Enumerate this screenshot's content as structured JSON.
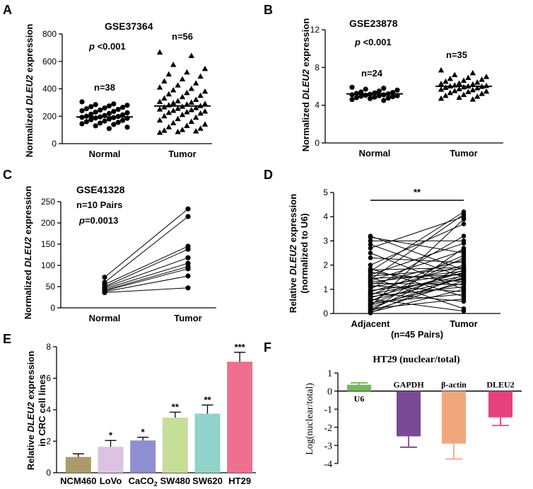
{
  "panels": {
    "A": {
      "label": "A",
      "chart_data": {
        "type": "scatter",
        "title": "GSE37364",
        "pvalue": "p <0.001",
        "ylabel_pre": "Normalized ",
        "ylabel_gene": "DLEU2",
        "ylabel_post": " expression",
        "ylim": [
          0,
          800
        ],
        "yticks": [
          "0",
          "200",
          "400",
          "600",
          "800"
        ],
        "categories": [
          "Normal",
          "Tumor"
        ],
        "groups": [
          {
            "name": "Normal",
            "n_label": "n=38",
            "marker": "circle",
            "mean": 195,
            "values": [
              305,
              290,
              285,
              280,
              275,
              270,
              265,
              260,
              255,
              250,
              245,
              240,
              235,
              230,
              225,
              220,
              215,
              210,
              205,
              200,
              198,
              195,
              192,
              190,
              187,
              185,
              180,
              175,
              170,
              165,
              160,
              155,
              150,
              145,
              140,
              130,
              120,
              110
            ]
          },
          {
            "name": "Tumor",
            "n_label": "n=56",
            "marker": "triangle",
            "mean": 275,
            "values": [
              665,
              640,
              575,
              545,
              520,
              505,
              490,
              470,
              455,
              440,
              425,
              410,
              400,
              390,
              380,
              370,
              360,
              350,
              340,
              330,
              320,
              310,
              305,
              300,
              295,
              290,
              285,
              280,
              275,
              270,
              265,
              260,
              255,
              250,
              245,
              240,
              235,
              230,
              225,
              220,
              210,
              200,
              190,
              180,
              170,
              160,
              150,
              140,
              130,
              120,
              110,
              100,
              95,
              90,
              85,
              80
            ]
          }
        ]
      }
    },
    "B": {
      "label": "B",
      "chart_data": {
        "type": "scatter",
        "title": "GSE23878",
        "pvalue": "p <0.001",
        "ylabel_pre": "Normalized ",
        "ylabel_gene": "DLEU2",
        "ylabel_post": " expression",
        "ylim": [
          0,
          12
        ],
        "yticks": [
          "0",
          "4",
          "8",
          "12"
        ],
        "categories": [
          "Normal",
          "Tumor"
        ],
        "groups": [
          {
            "name": "Normal",
            "n_label": "n=24",
            "marker": "circle",
            "mean": 5.2,
            "values": [
              5.9,
              5.8,
              5.7,
              5.6,
              5.5,
              5.4,
              5.35,
              5.3,
              5.25,
              5.2,
              5.15,
              5.1,
              5.1,
              5.05,
              5.0,
              5.0,
              4.95,
              4.9,
              4.85,
              4.8,
              4.75,
              4.7,
              4.6,
              4.5
            ]
          },
          {
            "name": "Tumor",
            "n_label": "n=35",
            "marker": "triangle",
            "mean": 6.0,
            "values": [
              7.7,
              7.4,
              7.2,
              7.0,
              6.9,
              6.8,
              6.7,
              6.6,
              6.5,
              6.4,
              6.3,
              6.25,
              6.2,
              6.1,
              6.05,
              6.0,
              6.0,
              5.95,
              5.9,
              5.85,
              5.8,
              5.7,
              5.65,
              5.6,
              5.5,
              5.45,
              5.4,
              5.3,
              5.2,
              5.1,
              5.0,
              4.9,
              4.8,
              4.7,
              4.6
            ]
          }
        ]
      }
    },
    "C": {
      "label": "C",
      "chart_data": {
        "type": "line",
        "title": "GSE41328",
        "subtitle": "n=10 Pairs",
        "pvalue": "p=0.0013",
        "ylabel_pre": "Normalized ",
        "ylabel_gene": "DLEU2",
        "ylabel_post": " expression",
        "ylim": [
          0,
          250
        ],
        "yticks": [
          "0",
          "50",
          "100",
          "150",
          "200",
          "250"
        ],
        "categories": [
          "Normal",
          "Tumor"
        ],
        "pairs": [
          [
            72,
            233
          ],
          [
            60,
            215
          ],
          [
            55,
            145
          ],
          [
            50,
            138
          ],
          [
            48,
            118
          ],
          [
            45,
            105
          ],
          [
            42,
            97
          ],
          [
            40,
            92
          ],
          [
            38,
            75
          ],
          [
            36,
            47
          ]
        ]
      }
    },
    "D": {
      "label": "D",
      "chart_data": {
        "type": "line",
        "ylabel_pre": "Relative ",
        "ylabel_gene": "DLEU2",
        "ylabel_post": " expression",
        "ylabel2": "(normalized to U6)",
        "ylim": [
          0,
          5
        ],
        "yticks": [
          "0",
          "1",
          "2",
          "3",
          "4",
          "5"
        ],
        "categories": [
          "Adjacent",
          "Tumor"
        ],
        "xlabel": "(n=45 Pairs)",
        "significance": "**",
        "pairs": [
          [
            3.2,
            1.8
          ],
          [
            3.15,
            2.5
          ],
          [
            3.0,
            3.0
          ],
          [
            2.85,
            1.5
          ],
          [
            2.7,
            4.0
          ],
          [
            2.5,
            1.0
          ],
          [
            2.3,
            2.1
          ],
          [
            2.0,
            3.7
          ],
          [
            1.85,
            0.7
          ],
          [
            1.8,
            1.9
          ],
          [
            1.75,
            4.2
          ],
          [
            1.7,
            1.3
          ],
          [
            1.6,
            2.9
          ],
          [
            1.55,
            1.85
          ],
          [
            1.5,
            0.2
          ],
          [
            1.45,
            1.6
          ],
          [
            1.4,
            4.1
          ],
          [
            1.35,
            2.6
          ],
          [
            1.3,
            1.75
          ],
          [
            1.25,
            1.2
          ],
          [
            1.2,
            2.2
          ],
          [
            1.15,
            0.9
          ],
          [
            1.1,
            1.65
          ],
          [
            1.0,
            3.2
          ],
          [
            0.95,
            1.4
          ],
          [
            0.9,
            2.0
          ],
          [
            0.85,
            0.5
          ],
          [
            0.8,
            1.55
          ],
          [
            0.75,
            2.4
          ],
          [
            0.7,
            1.1
          ],
          [
            0.65,
            1.7
          ],
          [
            0.6,
            0.1
          ],
          [
            0.55,
            1.45
          ],
          [
            0.5,
            2.3
          ],
          [
            0.45,
            0.8
          ],
          [
            0.4,
            1.8
          ],
          [
            0.35,
            1.25
          ],
          [
            0.3,
            3.9
          ],
          [
            0.25,
            1.5
          ],
          [
            0.2,
            0.6
          ],
          [
            0.15,
            1.95
          ],
          [
            0.1,
            1.35
          ],
          [
            0.08,
            2.7
          ],
          [
            0.05,
            1.0
          ],
          [
            0.02,
            1.6
          ]
        ]
      }
    },
    "E": {
      "label": "E",
      "chart_data": {
        "type": "bar",
        "ylabel_pre": "Relative ",
        "ylabel_gene": "DLEU2",
        "ylabel_post": " expression",
        "ylabel2": "in CRC cell lines",
        "ylim": [
          0,
          8
        ],
        "yticks": [
          "0",
          "2",
          "4",
          "6",
          "8"
        ],
        "categories": [
          "NCM460",
          "LoVo",
          "CaCO2",
          "SW480",
          "SW620",
          "HT29"
        ],
        "values": [
          1.0,
          1.65,
          2.05,
          3.5,
          3.75,
          7.05
        ],
        "errors": [
          0.2,
          0.4,
          0.2,
          0.35,
          0.55,
          0.6
        ],
        "significance": [
          "",
          "*",
          "*",
          "**",
          "**",
          "***"
        ],
        "colors": [
          "#ad9a6a",
          "#dcc3e2",
          "#8f8ed0",
          "#c6de97",
          "#8fd3c9",
          "#ee6f90"
        ]
      }
    },
    "F": {
      "label": "F",
      "chart_data": {
        "type": "bar",
        "title": "HT29 (nuclear/total)",
        "ylabel": "Log(nuclear/total)",
        "ylim": [
          -4,
          1
        ],
        "yticks": [
          "1",
          "0",
          "-1",
          "-2",
          "-3",
          "-4"
        ],
        "categories": [
          "U6",
          "GAPDH",
          "β-actin",
          "DLEU2"
        ],
        "values": [
          0.35,
          -2.5,
          -2.9,
          -1.45
        ],
        "errors": [
          0.1,
          0.6,
          0.85,
          0.45
        ],
        "colors": [
          "#74b95c",
          "#7b4a95",
          "#f0a77b",
          "#e8407c"
        ]
      }
    }
  }
}
